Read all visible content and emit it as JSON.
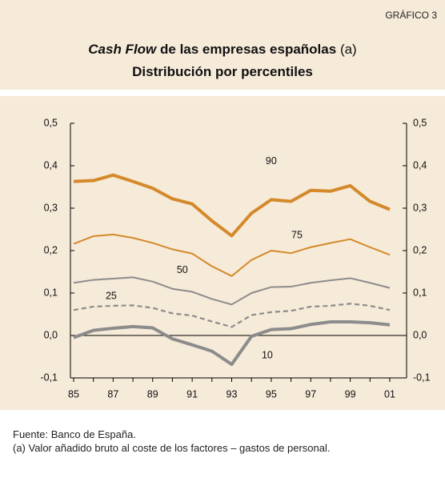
{
  "label": "GRÁFICO 3",
  "chart_data": {
    "type": "line",
    "title": [
      "Cash Flow",
      "de las empresas españolas",
      "(a)"
    ],
    "subtitle": "Distribución por percentiles",
    "categories": [
      "85",
      null,
      "87",
      null,
      "89",
      null,
      "91",
      null,
      "93",
      null,
      "95",
      null,
      "97",
      null,
      "99",
      null,
      "01"
    ],
    "ylim": [
      -0.1,
      0.5
    ],
    "yticks": [
      {
        "value": -0.1,
        "label": "-0,1"
      },
      {
        "value": 0,
        "label": "0,0"
      },
      {
        "value": 0.1,
        "label": "0,1"
      },
      {
        "value": 0.2,
        "label": "0,2"
      },
      {
        "value": 0.3,
        "label": "0,3"
      },
      {
        "value": 0.4,
        "label": "0,4"
      },
      {
        "value": 0.5,
        "label": "0,5"
      }
    ],
    "series": [
      {
        "name": "90",
        "color": "#d4892a",
        "values": [
          0.363,
          0.365,
          0.378,
          0.363,
          0.347,
          0.322,
          0.31,
          0.27,
          0.235,
          0.288,
          0.32,
          0.316,
          0.342,
          0.34,
          0.353,
          0.316,
          0.297
        ]
      },
      {
        "name": "75",
        "color": "#d4892a",
        "values": [
          0.216,
          0.234,
          0.238,
          0.23,
          0.218,
          0.203,
          0.193,
          0.163,
          0.14,
          0.178,
          0.2,
          0.194,
          0.208,
          0.218,
          0.227,
          0.208,
          0.19
        ]
      },
      {
        "name": "50",
        "color": "#8c8c8c",
        "values": [
          0.124,
          0.131,
          0.134,
          0.137,
          0.127,
          0.11,
          0.103,
          0.086,
          0.073,
          0.1,
          0.114,
          0.115,
          0.124,
          0.13,
          0.135,
          0.124,
          0.112
        ]
      },
      {
        "name": "25",
        "color": "#8c8c8c",
        "dashed": true,
        "values": [
          0.06,
          0.068,
          0.07,
          0.071,
          0.065,
          0.052,
          0.047,
          0.033,
          0.02,
          0.048,
          0.055,
          0.058,
          0.068,
          0.07,
          0.075,
          0.07,
          0.06
        ]
      },
      {
        "name": "10",
        "color": "#8c8c8c",
        "values": [
          -0.005,
          0.012,
          0.017,
          0.021,
          0.018,
          -0.008,
          -0.022,
          -0.037,
          -0.068,
          -0.002,
          0.014,
          0.016,
          0.026,
          0.032,
          0.032,
          0.03,
          0.025
        ]
      }
    ]
  },
  "footnotes": [
    "Fuente: Banco de España.",
    "(a)  Valor añadido bruto al coste de los factores – gastos de personal."
  ]
}
